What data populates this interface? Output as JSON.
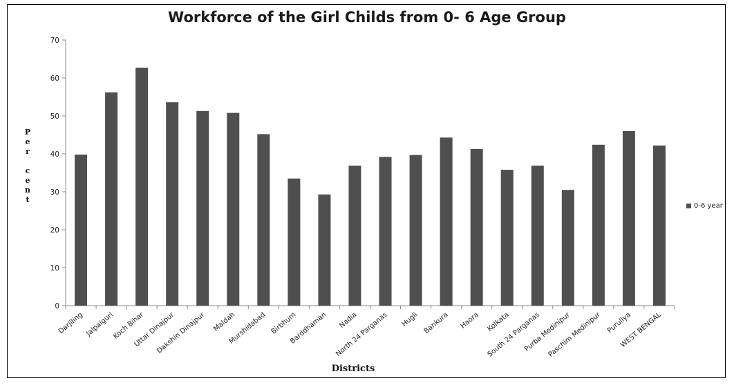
{
  "chart_data": {
    "type": "bar",
    "title": "Workforce of the Girl Childs from 0- 6 Age Group",
    "xlabel": "Districts",
    "ylabel": "Per cent",
    "ylim": [
      0,
      70
    ],
    "yticks": [
      0,
      10,
      20,
      30,
      40,
      50,
      60,
      70
    ],
    "legend_position": "right",
    "grid": false,
    "categories": [
      "Darjiling",
      "Jalpaiguri",
      "Koch Bihar",
      "Uttar Dinajpur",
      "Dakshin Dinajpur",
      "Maldah",
      "Murshidabad",
      "Birbhum",
      "Barddhaman",
      "Nadia",
      "North 24 Parganas",
      "Hugli",
      "Bankura",
      "Haora",
      "Kolkata",
      "South 24 Parganas",
      "Purba Medinipur",
      "Paschim Medinipur",
      "Puruliya",
      "WEST BENGAL"
    ],
    "series": [
      {
        "name": "0-6 year",
        "color": "#4f4f4f",
        "values": [
          39.8,
          56.2,
          62.7,
          53.6,
          51.3,
          50.8,
          45.2,
          33.5,
          29.3,
          36.9,
          39.2,
          39.7,
          44.3,
          41.3,
          35.8,
          36.9,
          30.5,
          42.4,
          46.0,
          42.2
        ]
      }
    ]
  }
}
